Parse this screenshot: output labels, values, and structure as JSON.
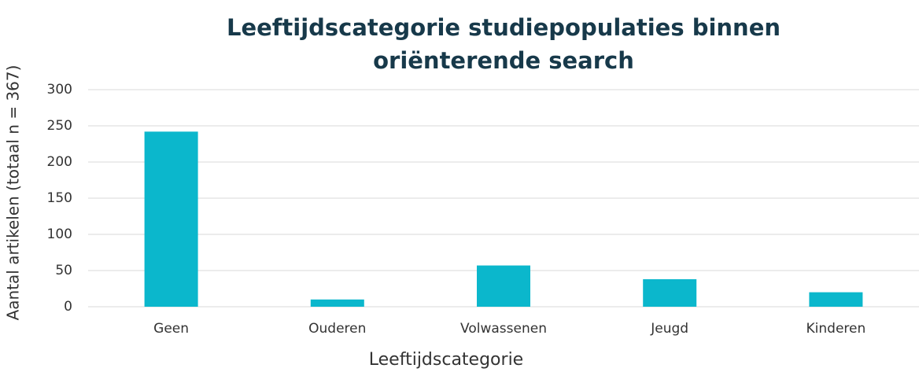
{
  "chart_data": {
    "type": "bar",
    "title": "Leeftijdscategorie studiepopulaties binnen oriënterende search",
    "x_label": "Leeftijdscategorie",
    "y_label": "Aantal artikelen (totaal n = 367)",
    "categories": [
      "Geen",
      "Ouderen",
      "Volwassenen",
      "Jeugd",
      "Kinderen"
    ],
    "values": [
      242,
      10,
      57,
      38,
      20
    ],
    "color": "#0bb7cc",
    "ylim": [
      0,
      300
    ],
    "yticks": [
      0,
      50,
      100,
      150,
      200,
      250,
      300
    ],
    "grid": true
  }
}
